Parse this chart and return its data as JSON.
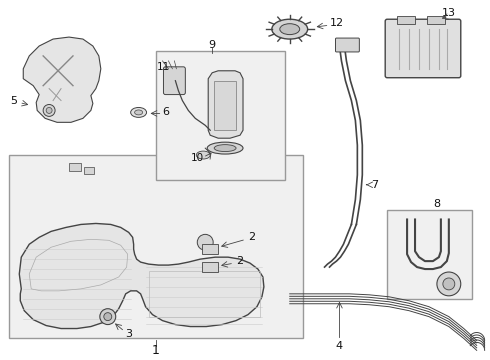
{
  "bg_color": "#ffffff",
  "line_color": "#444444",
  "label_color": "#111111",
  "box_bg": "#f0f0f0",
  "tank_bg": "#e8e8e8",
  "component_bg": "#e0e0e0"
}
